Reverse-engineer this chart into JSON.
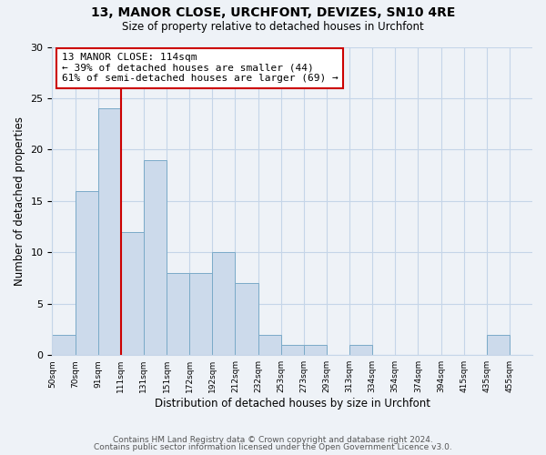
{
  "title": "13, MANOR CLOSE, URCHFONT, DEVIZES, SN10 4RE",
  "subtitle": "Size of property relative to detached houses in Urchfont",
  "xlabel": "Distribution of detached houses by size in Urchfont",
  "ylabel": "Number of detached properties",
  "bar_color": "#ccdaeb",
  "bar_edge_color": "#7aaac8",
  "bin_labels": [
    "50sqm",
    "70sqm",
    "91sqm",
    "111sqm",
    "131sqm",
    "151sqm",
    "172sqm",
    "192sqm",
    "212sqm",
    "232sqm",
    "253sqm",
    "273sqm",
    "293sqm",
    "313sqm",
    "334sqm",
    "354sqm",
    "374sqm",
    "394sqm",
    "415sqm",
    "435sqm",
    "455sqm"
  ],
  "bin_edges": [
    0,
    1,
    2,
    3,
    4,
    5,
    6,
    7,
    8,
    9,
    10,
    11,
    12,
    13,
    14,
    15,
    16,
    17,
    18,
    19,
    20,
    21
  ],
  "counts": [
    2,
    16,
    24,
    12,
    19,
    8,
    8,
    10,
    7,
    2,
    1,
    1,
    0,
    1,
    0,
    0,
    0,
    0,
    0,
    2,
    0
  ],
  "n_bars": 21,
  "property_line_x": 3,
  "annotation_text": "13 MANOR CLOSE: 114sqm\n← 39% of detached houses are smaller (44)\n61% of semi-detached houses are larger (69) →",
  "annotation_box_color": "white",
  "annotation_box_edge_color": "#cc0000",
  "line_color": "#cc0000",
  "ylim": [
    0,
    30
  ],
  "yticks": [
    0,
    5,
    10,
    15,
    20,
    25,
    30
  ],
  "footer_line1": "Contains HM Land Registry data © Crown copyright and database right 2024.",
  "footer_line2": "Contains public sector information licensed under the Open Government Licence v3.0.",
  "background_color": "#eef2f7",
  "plot_background_color": "#eef2f7",
  "grid_color": "#c5d5e8"
}
